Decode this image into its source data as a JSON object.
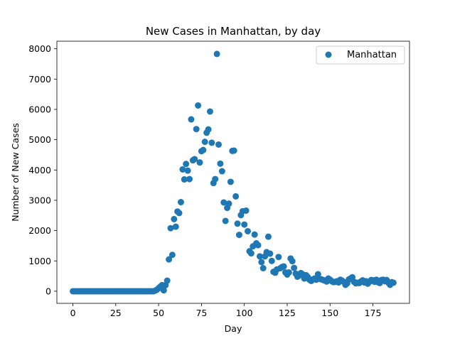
{
  "chart_data": {
    "type": "scatter",
    "title": "New Cases in Manhattan, by day",
    "xlabel": "Day",
    "ylabel": "Number of New Cases",
    "xlim": [
      -9.35,
      196.35
    ],
    "ylim": [
      -400,
      8250
    ],
    "xticks": [
      0,
      25,
      50,
      75,
      100,
      125,
      150,
      175
    ],
    "yticks": [
      0,
      1000,
      2000,
      3000,
      4000,
      5000,
      6000,
      7000,
      8000
    ],
    "grid": false,
    "legend_position": "top-right",
    "series": [
      {
        "name": "Manhattan",
        "color": "#1f77b4",
        "points": [
          [
            0,
            0
          ],
          [
            1,
            0
          ],
          [
            2,
            0
          ],
          [
            3,
            0
          ],
          [
            4,
            0
          ],
          [
            5,
            0
          ],
          [
            6,
            0
          ],
          [
            7,
            0
          ],
          [
            8,
            0
          ],
          [
            9,
            0
          ],
          [
            10,
            0
          ],
          [
            11,
            0
          ],
          [
            12,
            0
          ],
          [
            13,
            0
          ],
          [
            14,
            0
          ],
          [
            15,
            0
          ],
          [
            16,
            0
          ],
          [
            17,
            0
          ],
          [
            18,
            0
          ],
          [
            19,
            0
          ],
          [
            20,
            0
          ],
          [
            21,
            0
          ],
          [
            22,
            0
          ],
          [
            23,
            0
          ],
          [
            24,
            0
          ],
          [
            25,
            0
          ],
          [
            26,
            0
          ],
          [
            27,
            0
          ],
          [
            28,
            0
          ],
          [
            29,
            0
          ],
          [
            30,
            0
          ],
          [
            31,
            0
          ],
          [
            32,
            0
          ],
          [
            33,
            0
          ],
          [
            34,
            0
          ],
          [
            35,
            0
          ],
          [
            36,
            0
          ],
          [
            37,
            0
          ],
          [
            38,
            0
          ],
          [
            39,
            0
          ],
          [
            40,
            0
          ],
          [
            41,
            0
          ],
          [
            42,
            0
          ],
          [
            43,
            0
          ],
          [
            44,
            0
          ],
          [
            45,
            0
          ],
          [
            46,
            0
          ],
          [
            47,
            0
          ],
          [
            48,
            20
          ],
          [
            49,
            50
          ],
          [
            50,
            100
          ],
          [
            51,
            150
          ],
          [
            52,
            200
          ],
          [
            53,
            30
          ],
          [
            54,
            200
          ],
          [
            55,
            350
          ],
          [
            56,
            1050
          ],
          [
            57,
            2080
          ],
          [
            58,
            1200
          ],
          [
            59,
            2380
          ],
          [
            60,
            2130
          ],
          [
            61,
            2630
          ],
          [
            62,
            2580
          ],
          [
            63,
            2940
          ],
          [
            64,
            4020
          ],
          [
            65,
            3690
          ],
          [
            66,
            4200
          ],
          [
            67,
            3980
          ],
          [
            68,
            3700
          ],
          [
            69,
            5670
          ],
          [
            70,
            4320
          ],
          [
            71,
            4360
          ],
          [
            72,
            5350
          ],
          [
            73,
            6130
          ],
          [
            74,
            4250
          ],
          [
            75,
            4620
          ],
          [
            76,
            4660
          ],
          [
            77,
            4930
          ],
          [
            78,
            5230
          ],
          [
            79,
            5340
          ],
          [
            80,
            5930
          ],
          [
            81,
            4900
          ],
          [
            82,
            3570
          ],
          [
            83,
            3700
          ],
          [
            84,
            7830
          ],
          [
            85,
            4840
          ],
          [
            86,
            4210
          ],
          [
            87,
            3960
          ],
          [
            88,
            2930
          ],
          [
            89,
            2320
          ],
          [
            90,
            2750
          ],
          [
            91,
            2890
          ],
          [
            92,
            3610
          ],
          [
            93,
            4630
          ],
          [
            94,
            4640
          ],
          [
            95,
            3130
          ],
          [
            96,
            2230
          ],
          [
            97,
            1860
          ],
          [
            98,
            2510
          ],
          [
            99,
            2640
          ],
          [
            100,
            2200
          ],
          [
            101,
            2660
          ],
          [
            102,
            1980
          ],
          [
            103,
            1320
          ],
          [
            104,
            1250
          ],
          [
            105,
            1480
          ],
          [
            106,
            1870
          ],
          [
            107,
            1580
          ],
          [
            108,
            1520
          ],
          [
            109,
            1150
          ],
          [
            110,
            960
          ],
          [
            111,
            760
          ],
          [
            112,
            1150
          ],
          [
            113,
            1290
          ],
          [
            114,
            1800
          ],
          [
            115,
            1240
          ],
          [
            116,
            1000
          ],
          [
            117,
            640
          ],
          [
            118,
            610
          ],
          [
            119,
            720
          ],
          [
            120,
            1130
          ],
          [
            121,
            760
          ],
          [
            122,
            800
          ],
          [
            123,
            820
          ],
          [
            124,
            620
          ],
          [
            125,
            550
          ],
          [
            126,
            620
          ],
          [
            127,
            1080
          ],
          [
            128,
            990
          ],
          [
            129,
            770
          ],
          [
            130,
            580
          ],
          [
            131,
            480
          ],
          [
            132,
            520
          ],
          [
            133,
            600
          ],
          [
            134,
            560
          ],
          [
            135,
            420
          ],
          [
            136,
            530
          ],
          [
            137,
            470
          ],
          [
            138,
            380
          ],
          [
            139,
            340
          ],
          [
            140,
            390
          ],
          [
            141,
            420
          ],
          [
            142,
            380
          ],
          [
            143,
            560
          ],
          [
            144,
            410
          ],
          [
            145,
            390
          ],
          [
            146,
            370
          ],
          [
            147,
            350
          ],
          [
            148,
            320
          ],
          [
            149,
            420
          ],
          [
            150,
            380
          ],
          [
            151,
            330
          ],
          [
            152,
            300
          ],
          [
            153,
            310
          ],
          [
            154,
            330
          ],
          [
            155,
            290
          ],
          [
            156,
            380
          ],
          [
            157,
            350
          ],
          [
            158,
            310
          ],
          [
            159,
            210
          ],
          [
            160,
            260
          ],
          [
            161,
            390
          ],
          [
            162,
            420
          ],
          [
            163,
            460
          ],
          [
            164,
            310
          ],
          [
            165,
            260
          ],
          [
            166,
            280
          ],
          [
            167,
            270
          ],
          [
            168,
            320
          ],
          [
            169,
            360
          ],
          [
            170,
            290
          ],
          [
            171,
            330
          ],
          [
            172,
            250
          ],
          [
            173,
            310
          ],
          [
            174,
            370
          ],
          [
            175,
            360
          ],
          [
            176,
            310
          ],
          [
            177,
            380
          ],
          [
            178,
            300
          ],
          [
            179,
            270
          ],
          [
            180,
            370
          ],
          [
            181,
            380
          ],
          [
            182,
            330
          ],
          [
            183,
            370
          ],
          [
            184,
            280
          ],
          [
            185,
            210
          ],
          [
            186,
            300
          ],
          [
            187,
            280
          ]
        ]
      }
    ]
  }
}
